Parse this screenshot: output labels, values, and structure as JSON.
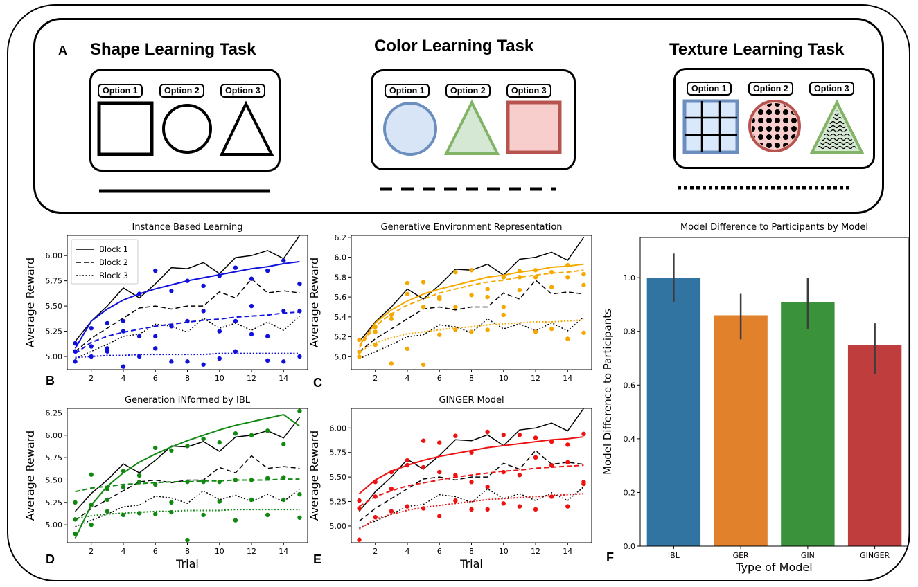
{
  "panel_a": {
    "letter": "A",
    "tasks": [
      {
        "title": "Shape Learning Task",
        "options": [
          "Option 1",
          "Option 2",
          "Option 3"
        ],
        "line_style": "solid"
      },
      {
        "title": "Color Learning Task",
        "options": [
          "Option 1",
          "Option 2",
          "Option 3"
        ],
        "line_style": "dashed"
      },
      {
        "title": "Texture Learning Task",
        "options": [
          "Option 1",
          "Option 2",
          "Option 3"
        ],
        "line_style": "dotted"
      }
    ]
  },
  "panel_letters": {
    "b": "B",
    "c": "C",
    "d": "D",
    "e": "E",
    "f": "F"
  },
  "chart_data": [
    {
      "id": "B",
      "type": "line",
      "title": "Instance Based Learning",
      "xlabel": "",
      "ylabel": "Average Reward",
      "xlim": [
        0.5,
        15.5
      ],
      "ylim": [
        4.87,
        6.2
      ],
      "xticks": [
        2,
        4,
        6,
        8,
        10,
        12,
        14
      ],
      "yticks": [
        5.0,
        5.25,
        5.5,
        5.75,
        6.0
      ],
      "ytick_labels": [
        "5.00",
        "5.25",
        "5.50",
        "5.75",
        "6.00"
      ],
      "legend": {
        "placement": "top-left",
        "entries": [
          "Block 1",
          "Block 2",
          "Block 3"
        ]
      },
      "participants": {
        "Block 1": [
          5.15,
          5.35,
          5.5,
          5.68,
          5.58,
          5.72,
          5.88,
          5.87,
          5.93,
          5.82,
          5.98,
          6.0,
          6.05,
          5.97,
          6.2
        ],
        "Block 2": [
          5.05,
          5.18,
          5.28,
          5.38,
          5.48,
          5.5,
          5.47,
          5.5,
          5.5,
          5.64,
          5.58,
          5.77,
          5.63,
          5.65,
          5.63
        ],
        "Block 3": [
          4.98,
          5.05,
          5.12,
          5.2,
          5.22,
          5.32,
          5.3,
          5.24,
          5.38,
          5.28,
          5.33,
          5.26,
          5.34,
          5.26,
          5.4
        ]
      },
      "model_color": "#1010dd",
      "model_points": {
        "Block 1": [
          5.13,
          5.28,
          5.33,
          5.35,
          5.62,
          5.85,
          5.65,
          5.75,
          5.7,
          5.8,
          5.88,
          5.77,
          5.85,
          5.95,
          5.72
        ],
        "Block 2": [
          5.05,
          5.1,
          5.08,
          5.25,
          5.2,
          5.2,
          5.3,
          5.35,
          5.45,
          5.25,
          5.35,
          5.5,
          5.2,
          5.45,
          5.45
        ],
        "Block 3": [
          4.95,
          5.0,
          5.05,
          4.9,
          5.0,
          5.08,
          4.95,
          4.95,
          4.92,
          4.98,
          5.05,
          5.22,
          4.96,
          4.95,
          5.0
        ]
      },
      "model_fit": {
        "Block 1": [
          5.08,
          5.35,
          5.47,
          5.56,
          5.62,
          5.67,
          5.71,
          5.75,
          5.78,
          5.81,
          5.84,
          5.87,
          5.89,
          5.92,
          5.94
        ],
        "Block 2": [
          5.03,
          5.14,
          5.2,
          5.24,
          5.27,
          5.3,
          5.32,
          5.34,
          5.36,
          5.37,
          5.39,
          5.4,
          5.41,
          5.43,
          5.44
        ],
        "Block 3": [
          4.99,
          5.0,
          5.01,
          5.01,
          5.02,
          5.02,
          5.02,
          5.02,
          5.02,
          5.03,
          5.03,
          5.03,
          5.03,
          5.03,
          5.03
        ]
      }
    },
    {
      "id": "C",
      "type": "line",
      "title": "Generative Environment Representation",
      "xlabel": "",
      "ylabel": "Average Reward",
      "xlim": [
        0.5,
        15.5
      ],
      "ylim": [
        4.87,
        6.22
      ],
      "xticks": [
        2,
        4,
        6,
        8,
        10,
        12,
        14
      ],
      "yticks": [
        5.0,
        5.2,
        5.4,
        5.6,
        5.8,
        6.0,
        6.2
      ],
      "ytick_labels": [
        "5.0",
        "5.2",
        "5.4",
        "5.6",
        "5.8",
        "6.0",
        "6.2"
      ],
      "participants": {
        "Block 1": [
          5.15,
          5.35,
          5.5,
          5.68,
          5.58,
          5.72,
          5.88,
          5.87,
          5.93,
          5.82,
          5.98,
          6.0,
          6.05,
          5.97,
          6.2
        ],
        "Block 2": [
          5.05,
          5.18,
          5.28,
          5.38,
          5.48,
          5.5,
          5.47,
          5.5,
          5.5,
          5.64,
          5.58,
          5.77,
          5.63,
          5.65,
          5.63
        ],
        "Block 3": [
          4.98,
          5.05,
          5.12,
          5.2,
          5.22,
          5.32,
          5.3,
          5.24,
          5.38,
          5.28,
          5.33,
          5.26,
          5.34,
          5.26,
          5.4
        ]
      },
      "model_color": "#f5a800",
      "model_points": {
        "Block 1": [
          5.17,
          5.3,
          5.42,
          5.74,
          5.75,
          5.6,
          5.85,
          5.87,
          5.68,
          5.8,
          5.86,
          5.87,
          5.85,
          5.92,
          5.83
        ],
        "Block 2": [
          5.05,
          5.25,
          5.38,
          5.63,
          5.5,
          5.58,
          5.5,
          5.62,
          5.6,
          5.5,
          5.8,
          5.8,
          5.7,
          5.8,
          5.72
        ],
        "Block 3": [
          5.0,
          5.12,
          4.93,
          5.08,
          4.92,
          5.22,
          5.27,
          5.25,
          5.27,
          5.42,
          5.67,
          5.25,
          5.28,
          5.18,
          5.24
        ]
      },
      "model_fit": {
        "Block 1": [
          5.11,
          5.34,
          5.47,
          5.56,
          5.63,
          5.68,
          5.72,
          5.76,
          5.8,
          5.82,
          5.85,
          5.87,
          5.9,
          5.91,
          5.93
        ],
        "Block 2": [
          5.09,
          5.31,
          5.43,
          5.52,
          5.58,
          5.64,
          5.68,
          5.72,
          5.75,
          5.77,
          5.8,
          5.82,
          5.84,
          5.85,
          5.87
        ],
        "Block 3": [
          5.05,
          5.14,
          5.19,
          5.23,
          5.25,
          5.27,
          5.29,
          5.3,
          5.32,
          5.33,
          5.34,
          5.35,
          5.35,
          5.36,
          5.37
        ]
      }
    },
    {
      "id": "D",
      "type": "line",
      "title": "Generation INformed by IBL",
      "xlabel": "Trial",
      "ylabel": "Average Reward",
      "xlim": [
        0.5,
        15.5
      ],
      "ylim": [
        4.8,
        6.3
      ],
      "xticks": [
        2,
        4,
        6,
        8,
        10,
        12,
        14
      ],
      "yticks": [
        5.0,
        5.25,
        5.5,
        5.75,
        6.0,
        6.25
      ],
      "ytick_labels": [
        "5.00",
        "5.25",
        "5.50",
        "5.75",
        "6.00",
        "6.25"
      ],
      "participants": {
        "Block 1": [
          5.15,
          5.35,
          5.5,
          5.68,
          5.58,
          5.72,
          5.88,
          5.87,
          5.93,
          5.82,
          5.98,
          6.0,
          6.05,
          5.97,
          6.2
        ],
        "Block 2": [
          5.05,
          5.18,
          5.28,
          5.38,
          5.48,
          5.5,
          5.47,
          5.5,
          5.5,
          5.64,
          5.58,
          5.77,
          5.63,
          5.65,
          5.63
        ],
        "Block 3": [
          4.98,
          5.05,
          5.12,
          5.2,
          5.22,
          5.32,
          5.3,
          5.24,
          5.38,
          5.28,
          5.33,
          5.26,
          5.34,
          5.26,
          5.4
        ]
      },
      "model_color": "#118811",
      "model_points": {
        "Block 1": [
          4.9,
          5.22,
          5.4,
          5.6,
          5.55,
          5.86,
          5.83,
          5.88,
          5.96,
          5.92,
          6.02,
          6.0,
          6.05,
          5.9,
          6.27
        ],
        "Block 2": [
          5.25,
          5.56,
          5.28,
          5.42,
          5.48,
          5.45,
          5.25,
          5.48,
          5.48,
          5.48,
          5.5,
          5.5,
          5.52,
          5.53,
          5.34
        ],
        "Block 3": [
          5.06,
          5.0,
          5.15,
          5.11,
          5.13,
          5.12,
          5.14,
          4.83,
          5.11,
          5.26,
          5.05,
          5.28,
          5.11,
          5.28,
          5.08
        ]
      },
      "model_fit": {
        "Block 1": [
          4.85,
          5.22,
          5.43,
          5.58,
          5.7,
          5.79,
          5.87,
          5.94,
          6.0,
          6.06,
          6.11,
          6.15,
          6.19,
          6.23,
          6.1
        ],
        "Block 2": [
          5.37,
          5.41,
          5.43,
          5.45,
          5.46,
          5.47,
          5.48,
          5.48,
          5.49,
          5.49,
          5.5,
          5.5,
          5.5,
          5.51,
          5.51
        ],
        "Block 3": [
          5.07,
          5.1,
          5.12,
          5.13,
          5.14,
          5.15,
          5.15,
          5.16,
          5.16,
          5.16,
          5.17,
          5.17,
          5.17,
          5.17,
          5.17
        ]
      }
    },
    {
      "id": "E",
      "type": "line",
      "title": "GINGER Model",
      "xlabel": "Trial",
      "ylabel": "Average Reward",
      "xlim": [
        0.5,
        15.5
      ],
      "ylim": [
        4.83,
        6.2
      ],
      "xticks": [
        2,
        4,
        6,
        8,
        10,
        12,
        14
      ],
      "yticks": [
        5.0,
        5.25,
        5.5,
        5.75,
        6.0
      ],
      "ytick_labels": [
        "5.00",
        "5.25",
        "5.50",
        "5.75",
        "6.00"
      ],
      "participants": {
        "Block 1": [
          5.15,
          5.35,
          5.5,
          5.68,
          5.58,
          5.72,
          5.88,
          5.87,
          5.93,
          5.82,
          5.98,
          6.0,
          6.05,
          5.97,
          6.2
        ],
        "Block 2": [
          5.05,
          5.18,
          5.28,
          5.38,
          5.48,
          5.5,
          5.47,
          5.5,
          5.5,
          5.64,
          5.58,
          5.77,
          5.63,
          5.65,
          5.63
        ],
        "Block 3": [
          4.98,
          5.05,
          5.12,
          5.2,
          5.22,
          5.32,
          5.3,
          5.24,
          5.38,
          5.28,
          5.33,
          5.26,
          5.34,
          5.26,
          5.4
        ]
      },
      "model_color": "#ee1111",
      "model_points": {
        "Block 1": [
          5.26,
          5.45,
          5.55,
          5.67,
          5.87,
          5.85,
          5.92,
          5.75,
          5.96,
          5.93,
          5.93,
          5.9,
          5.86,
          5.83,
          5.94
        ],
        "Block 2": [
          5.18,
          5.3,
          5.38,
          5.62,
          5.6,
          5.55,
          5.52,
          5.45,
          5.4,
          5.55,
          5.52,
          5.7,
          5.62,
          5.65,
          5.45
        ],
        "Block 3": [
          4.86,
          5.09,
          5.15,
          5.2,
          5.18,
          5.1,
          5.26,
          5.17,
          5.17,
          5.23,
          5.2,
          5.17,
          5.3,
          5.2,
          5.43
        ]
      },
      "model_fit": {
        "Block 1": [
          5.33,
          5.47,
          5.56,
          5.62,
          5.67,
          5.71,
          5.74,
          5.77,
          5.8,
          5.82,
          5.84,
          5.86,
          5.88,
          5.89,
          5.91
        ],
        "Block 2": [
          5.2,
          5.3,
          5.36,
          5.41,
          5.44,
          5.47,
          5.5,
          5.52,
          5.54,
          5.56,
          5.57,
          5.59,
          5.6,
          5.61,
          5.62
        ],
        "Block 3": [
          4.97,
          5.07,
          5.12,
          5.16,
          5.19,
          5.21,
          5.23,
          5.25,
          5.27,
          5.28,
          5.29,
          5.3,
          5.31,
          5.32,
          5.33
        ]
      }
    },
    {
      "id": "F",
      "type": "bar",
      "title": "Model Difference to Participants by Model",
      "xlabel": "Type of Model",
      "ylabel": "Model Difference to Participants",
      "categories": [
        "IBL",
        "GER",
        "GIN",
        "GINGER"
      ],
      "values": [
        1.0,
        0.86,
        0.91,
        0.75
      ],
      "error_low": [
        0.91,
        0.77,
        0.81,
        0.64
      ],
      "error_high": [
        1.09,
        0.94,
        1.0,
        0.83
      ],
      "colors": [
        "#3274a1",
        "#e1812c",
        "#3a923a",
        "#c03d3e"
      ],
      "ylim": [
        0,
        1.15
      ],
      "yticks": [
        0.0,
        0.2,
        0.4,
        0.6,
        0.8,
        1.0
      ],
      "ytick_labels": [
        "0.0",
        "0.2",
        "0.4",
        "0.6",
        "0.8",
        "1.0"
      ]
    }
  ]
}
